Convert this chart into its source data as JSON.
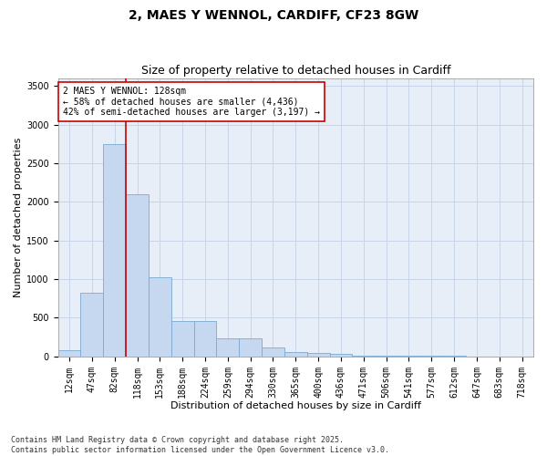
{
  "title": "2, MAES Y WENNOL, CARDIFF, CF23 8GW",
  "subtitle": "Size of property relative to detached houses in Cardiff",
  "xlabel": "Distribution of detached houses by size in Cardiff",
  "ylabel": "Number of detached properties",
  "categories": [
    "12sqm",
    "47sqm",
    "82sqm",
    "118sqm",
    "153sqm",
    "188sqm",
    "224sqm",
    "259sqm",
    "294sqm",
    "330sqm",
    "365sqm",
    "400sqm",
    "436sqm",
    "471sqm",
    "506sqm",
    "541sqm",
    "577sqm",
    "612sqm",
    "647sqm",
    "683sqm",
    "718sqm"
  ],
  "values": [
    80,
    820,
    2750,
    2100,
    1030,
    460,
    460,
    230,
    230,
    120,
    60,
    50,
    30,
    15,
    10,
    8,
    5,
    5,
    3,
    3,
    2
  ],
  "bar_color": "#c5d8f0",
  "bar_edge_color": "#7aaad0",
  "vline_color": "#cc0000",
  "annotation_box_text": "2 MAES Y WENNOL: 128sqm\n← 58% of detached houses are smaller (4,436)\n42% of semi-detached houses are larger (3,197) →",
  "annotation_box_color": "#cc0000",
  "annotation_box_fill": "#ffffff",
  "ylim": [
    0,
    3600
  ],
  "yticks": [
    0,
    500,
    1000,
    1500,
    2000,
    2500,
    3000,
    3500
  ],
  "grid_color": "#c8d4e8",
  "background_color": "#e8eef8",
  "footer": "Contains HM Land Registry data © Crown copyright and database right 2025.\nContains public sector information licensed under the Open Government Licence v3.0.",
  "title_fontsize": 10,
  "subtitle_fontsize": 9,
  "xlabel_fontsize": 8,
  "ylabel_fontsize": 8,
  "tick_fontsize": 7,
  "annot_fontsize": 7,
  "footer_fontsize": 6
}
